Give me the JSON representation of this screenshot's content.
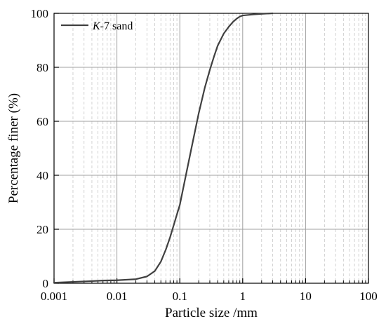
{
  "chart_data": {
    "type": "line",
    "x_scale": "log",
    "xlabel": "Particle size /mm",
    "ylabel": "Percentage finer (%)",
    "xlim": [
      0.001,
      100
    ],
    "ylim": [
      0,
      100
    ],
    "x_ticks": [
      0.001,
      0.01,
      0.1,
      1,
      10,
      100
    ],
    "x_tick_labels": [
      "0.001",
      "0.01",
      "0.1",
      "1",
      "10",
      "100"
    ],
    "y_ticks": [
      0,
      20,
      40,
      60,
      80,
      100
    ],
    "y_tick_labels": [
      "0",
      "20",
      "40",
      "60",
      "80",
      "100"
    ],
    "grid": true,
    "legend_position": "top-left",
    "series": [
      {
        "name": "K-7 sand",
        "name_parts": {
          "italic": "K",
          "rest": "-7 sand"
        },
        "color": "#404040",
        "x": [
          0.001,
          0.002,
          0.004,
          0.006,
          0.01,
          0.02,
          0.03,
          0.04,
          0.05,
          0.06,
          0.07,
          0.08,
          0.09,
          0.1,
          0.12,
          0.15,
          0.2,
          0.25,
          0.3,
          0.35,
          0.4,
          0.5,
          0.6,
          0.7,
          0.8,
          0.9,
          1,
          1.5,
          2,
          3
        ],
        "y": [
          0.2,
          0.5,
          0.8,
          1.0,
          1.1,
          1.5,
          2.5,
          4.5,
          8,
          12.5,
          17,
          21.5,
          25.5,
          29,
          38,
          49,
          63,
          72.5,
          79,
          84,
          88,
          92.5,
          95,
          96.8,
          98,
          98.8,
          99.2,
          99.6,
          99.8,
          100
        ]
      }
    ]
  }
}
